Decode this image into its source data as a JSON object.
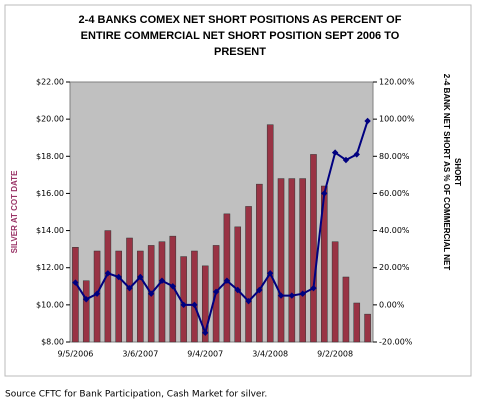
{
  "chart_data": {
    "type": "bar",
    "title": [
      "2-4 BANKS COMEX NET SHORT POSITIONS AS PERCENT OF",
      "ENTIRE COMMERCIAL NET SHORT POSITION SEPT 2006 TO",
      "PRESENT"
    ],
    "ylabel": "SILVER AT COT DATE",
    "y2label": [
      "2-4 BANK NET SHORT AS % OF COMMERCIAL NET",
      "SHORT"
    ],
    "categories": [
      "9/5/2006",
      null,
      null,
      null,
      null,
      null,
      "3/6/2007",
      null,
      null,
      null,
      null,
      null,
      "9/4/2007",
      null,
      null,
      null,
      null,
      null,
      "3/4/2008",
      null,
      null,
      null,
      null,
      null,
      "9/2/2008",
      null,
      null,
      null
    ],
    "series": [
      {
        "type": "bar",
        "color": "#993344",
        "axis": "y",
        "values": [
          13.1,
          11.3,
          12.9,
          14.0,
          12.9,
          13.6,
          12.9,
          13.2,
          13.4,
          13.7,
          12.6,
          12.9,
          12.1,
          13.2,
          14.9,
          14.2,
          15.3,
          16.5,
          19.7,
          16.8,
          16.8,
          16.8,
          18.1,
          16.4,
          13.4,
          11.5,
          10.1,
          9.5
        ]
      },
      {
        "type": "line",
        "color": "#000080",
        "axis": "y2",
        "values": [
          12,
          3,
          6,
          17,
          15,
          9,
          15,
          6,
          13,
          10,
          0,
          0,
          -15,
          7,
          13,
          8,
          2,
          8,
          17,
          5,
          5,
          6,
          9,
          60,
          82,
          78,
          81,
          99
        ]
      }
    ],
    "ylim": [
      8,
      22
    ],
    "yticks": [
      {
        "value": 8,
        "label": "$8.00"
      },
      {
        "value": 10,
        "label": "$10.00"
      },
      {
        "value": 12,
        "label": "$12.00"
      },
      {
        "value": 14,
        "label": "$14.00"
      },
      {
        "value": 16,
        "label": "$16.00"
      },
      {
        "value": 18,
        "label": "$18.00"
      },
      {
        "value": 20,
        "label": "$20.00"
      },
      {
        "value": 22,
        "label": "$22.00"
      }
    ],
    "y2lim": [
      -20,
      120
    ],
    "y2ticks": [
      {
        "value": -20,
        "label": "-20.00%"
      },
      {
        "value": 0,
        "label": "0.00%"
      },
      {
        "value": 20,
        "label": "20.00%"
      },
      {
        "value": 40,
        "label": "40.00%"
      },
      {
        "value": 60,
        "label": "60.00%"
      },
      {
        "value": 80,
        "label": "80.00%"
      },
      {
        "value": 100,
        "label": "100.00%"
      },
      {
        "value": 120,
        "label": "120.00%"
      }
    ],
    "background": "#c0c0c0",
    "ylabel_color": "#993366",
    "source": "Source CFTC for Bank Participation, Cash Market for silver."
  }
}
